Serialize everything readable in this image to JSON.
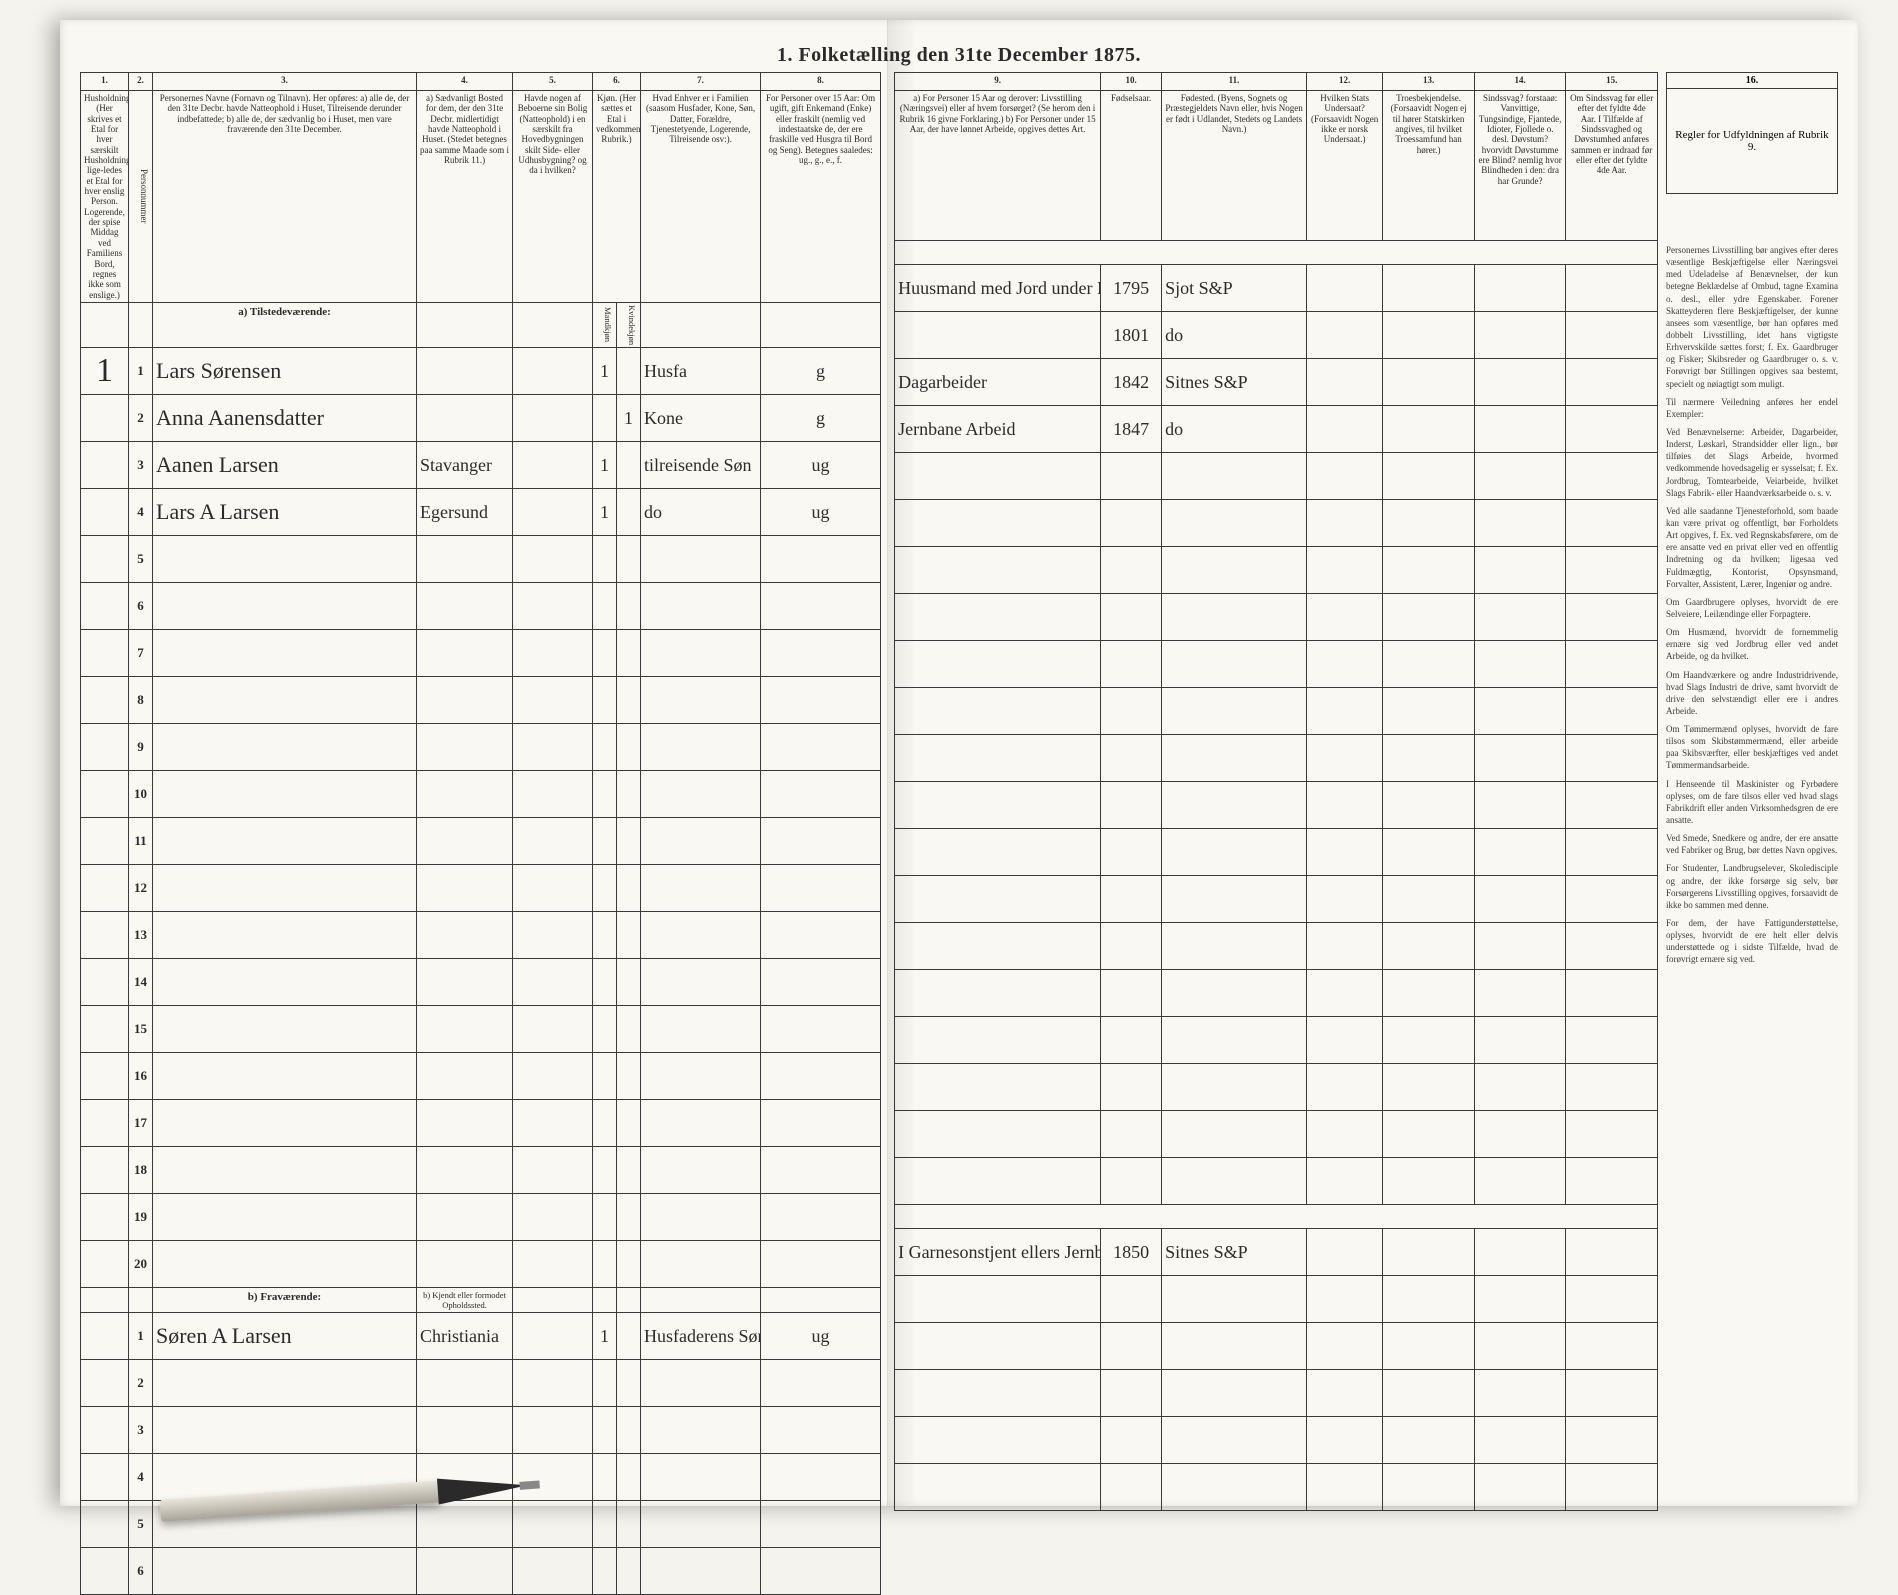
{
  "document": {
    "title": "1. Folketælling den 31te December 1875.",
    "background_color": "#faf8f2",
    "border_color": "#3a3a3a",
    "cursive_color": "#2b2b2b"
  },
  "columns_left": {
    "numbers": [
      "1.",
      "2.",
      "3.",
      "4.",
      "5.",
      "6.",
      "7.",
      "8."
    ],
    "headers": [
      "Husholdninger. (Her skrives et Etal for hver særskilt Husholdning; lige-ledes et Etal for hver enslig Person. Logerende, der spise Middag ved Familiens Bord, regnes ikke som enslige.)",
      "Personnummer",
      "Personernes Navne (Fornavn og Tilnavn).\nHer opføres:\na) alle de, der den 31te Decbr. havde Natteophold i Huset, Tilreisende derunder indbefattede;\nb) alle de, der sædvanlig bo i Huset, men vare fraværende den 31te December.",
      "a) Sædvanligt Bosted for dem, der den 31te Decbr. midlertidigt havde Natteophold i Huset. (Stedet betegnes paa samme Maade som i Rubrik 11.)",
      "Havde nogen af Beboerne sin Bolig (Natteophold) i en særskilt fra Hovedbygningen skilt Side- eller Udhusbygning? og da i hvilken?",
      "Kjøn. (Her sættes et Etal i vedkommende Rubrik.)",
      "Hvad Enhver er i Familien (saasom Husfader, Kone, Søn, Datter, Forældre, Tjenestetyende, Logerende, Tilreisende osv:).",
      "For Personer over 15 Aar: Om ugift, gift Enkemand (Enke) eller fraskilt (nemlig ved indestaatske de, der ere fraskille ved Husgra til Bord og Seng). Betegnes saaledes: ug., g., e., f."
    ],
    "col6_sub": [
      "Mandkjøn",
      "Kvindekjøn"
    ]
  },
  "columns_right": {
    "numbers": [
      "9.",
      "10.",
      "11.",
      "12.",
      "13.",
      "14.",
      "15.",
      "16."
    ],
    "headers": [
      "a) For Personer 15 Aar og derover: Livsstilling (Næringsvei) eller af hvem forsørget? (Se herom den i Rubrik 16 givne Forklaring.)\nb) For Personer under 15 Aar, der have lønnet Arbeide, opgives dettes Art.",
      "Fødselsaar.",
      "Fødested. (Byens, Sognets og Præstegjeldets Navn eller, hvis Nogen er født i Udlandet, Stedets og Landets Navn.)",
      "Hvilken Stats Undersaat? (Forsaavidt Nogen ikke er norsk Undersaat.)",
      "Troesbekjendelse. (Forsaavidt Nogen ej til hører Statskirken angives, til hvilket Troessamfund han hører.)",
      "Sindssvag? forstaaø: Vanvittige, Tungsindige, Fjantede, Idioter, Fjollede o. desl. Døvstum? hvorvidt Døvstumme ere Blind? nemlig hvor Blindheden i den: dra har Grunde?",
      "Om Sindssvag før eller efter det fyldte 4de Aar. I Tilfælde af Sindssvaghed og Døvstumhed anføres sammen er indraad før eller efter det fyldte 4de Aar.",
      "Regler for Udfyldningen af Rubrik 9."
    ]
  },
  "section_a": {
    "label": "a) Tilstedeværende:",
    "rows": [
      {
        "n": "1",
        "household": "1",
        "name": "Lars Sørensen",
        "col4": "",
        "col5": "",
        "m": "1",
        "k": "",
        "family": "Husfa",
        "civil": "g",
        "occupation": "Huusmand med Jord under Nes af Sitnes Fattigvosen",
        "year": "1795",
        "birthplace": "Sjot S&P"
      },
      {
        "n": "2",
        "household": "",
        "name": "Anna Aanensdatter",
        "col4": "",
        "col5": "",
        "m": "",
        "k": "1",
        "family": "Kone",
        "civil": "g",
        "occupation": "",
        "year": "1801",
        "birthplace": "do"
      },
      {
        "n": "3",
        "household": "",
        "name": "Aanen Larsen",
        "col4": "Stavanger",
        "col5": "",
        "m": "1",
        "k": "",
        "family": "tilreisende Søn",
        "civil": "ug",
        "occupation": "Dagarbeider",
        "year": "1842",
        "birthplace": "Sitnes S&P"
      },
      {
        "n": "4",
        "household": "",
        "name": "Lars A Larsen",
        "col4": "Egersund",
        "col5": "",
        "m": "1",
        "k": "",
        "family": "do",
        "civil": "ug",
        "occupation": "Jernbane Arbeid",
        "year": "1847",
        "birthplace": "do"
      }
    ],
    "empty_rows": [
      "5",
      "6",
      "7",
      "8",
      "9",
      "10",
      "11",
      "12",
      "13",
      "14",
      "15",
      "16",
      "17",
      "18",
      "19",
      "20"
    ]
  },
  "section_b": {
    "label": "b) Fraværende:",
    "col4_label": "b) Kjendt eller formodet Opholdssted.",
    "rows": [
      {
        "n": "1",
        "household": "",
        "name": "Søren A Larsen",
        "col4": "Christiania",
        "col5": "",
        "m": "1",
        "k": "",
        "family": "Husfaderens Søn Soldat",
        "civil": "ug",
        "occupation": "I Garnesonstjent ellers Jernbane Arbeid",
        "year": "1850",
        "birthplace": "Sitnes S&P"
      }
    ],
    "empty_rows": [
      "2",
      "3",
      "4",
      "5",
      "6"
    ]
  },
  "instructions": {
    "paragraphs": [
      "Personernes Livsstilling bør angives efter deres væsentlige Beskjæftigelse eller Næringsvei med Udeladelse af Benævnelser, der kun betegne Beklædelse af Ombud, tagne Examina o. desl., eller ydre Egenskaber. Forener Skatteyderen flere Beskjæftigelser, der kunne ansees som væsentlige, bør han opføres med dobbelt Livsstilling, idet hans vigtigste Erhvervskilde sættes forst; f. Ex. Gaardbruger og Fisker; Skibsreder og Gaardbruger o. s. v. Forøvrigt bør Stillingen opgives saa bestemt, specielt og nøiagtigt som muligt.",
      "Til nærmere Veiledning anføres her endel Exempler:",
      "Ved Benævnelserne: Arbeider, Dagarbeider, Inderst, Løskarl, Strandsidder eller lign., bør tilføies det Slags Arbeide, hvormed vedkommende hovedsagelig er sysselsat; f. Ex. Jordbrug, Tomtearbeide, Veiarbeide, hvilket Slags Fabrik- eller Haandværksarbeide o. s. v.",
      "Ved alle saadanne Tjenesteforhold, som baade kan være privat og offentligt, bør Forholdets Art opgives, f. Ex. ved Regnskabsførere, om de ere ansatte ved en privat eller ved en offentlig Indretning og da hvilken; ligesaa ved Fuldmægtig, Kontorist, Opsynsmand, Forvalter, Assistent, Lærer, Ingeniør og andre.",
      "Om Gaardbrugere oplyses, hvorvidt de ere Selveiere, Leilændinge eller Forpagtere.",
      "Om Husmænd, hvorvidt de fornemmelig ernære sig ved Jordbrug eller ved andet Arbeide, og da hvilket.",
      "Om Haandværkere og andre Industridrivende, hvad Slags Industri de drive, samt hvorvidt de drive den selvstændigt eller ere i andres Arbeide.",
      "Om Tømmermænd oplyses, hvorvidt de fare tilsos som Skibstømmermænd, eller arbeide paa Skibsværfter, eller beskjæftiges ved andet Tømmermandsarbeide.",
      "I Henseende til Maskinister og Fyrbødere oplyses, om de fare tilsos eller ved hvad slags Fabrikdrift eller anden Virksomhedsgren de ere ansatte.",
      "Ved Smede, Snedkere og andre, der ere ansatte ved Fabriker og Brug, bør dettes Navn opgives.",
      "For Studenter, Landbrugselever, Skoledisciple og andre, der ikke forsørge sig selv, bør Forsørgerens Livsstilling opgives, forsaavidt de ikke bo sammen med denne.",
      "For dem, der have Fattigunderstøttelse, oplyses, hvorvidt de ere helt eller delvis understøttede og i sidste Tilfælde, hvad de forøvrigt ernære sig ved."
    ]
  }
}
